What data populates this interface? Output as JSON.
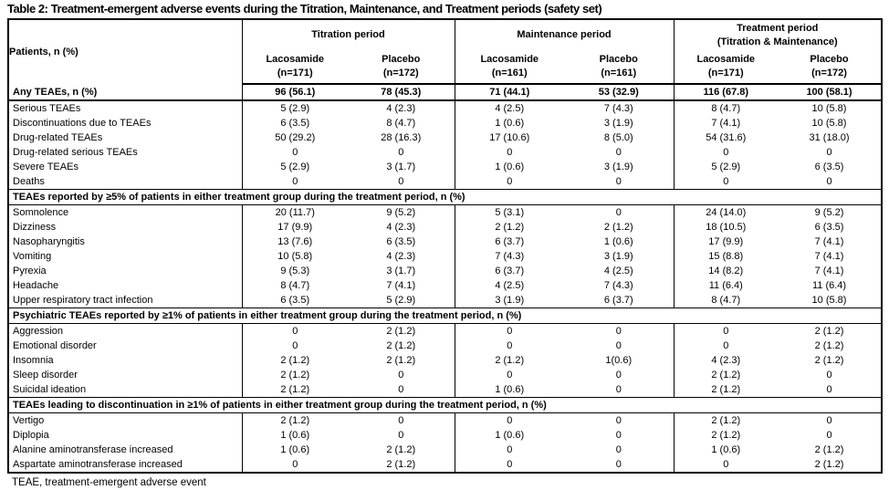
{
  "title": "Table 2: Treatment-emergent adverse events during the Titration, Maintenance, and Treatment periods (safety set)",
  "footnote": "TEAE, treatment-emergent adverse event",
  "colors": {
    "text": "#000000",
    "background": "#ffffff",
    "border": "#000000"
  },
  "table": {
    "corner_header": "Patients, n (%)",
    "period_groups": [
      {
        "label": "Titration period",
        "sublabel": "",
        "arms": [
          {
            "name": "Lacosamide",
            "n": "(n=171)"
          },
          {
            "name": "Placebo",
            "n": "(n=172)"
          }
        ]
      },
      {
        "label": "Maintenance period",
        "sublabel": "",
        "arms": [
          {
            "name": "Lacosamide",
            "n": "(n=161)"
          },
          {
            "name": "Placebo",
            "n": "(n=161)"
          }
        ]
      },
      {
        "label": "Treatment period",
        "sublabel": "(Titration & Maintenance)",
        "arms": [
          {
            "name": "Lacosamide",
            "n": "(n=171)"
          },
          {
            "name": "Placebo",
            "n": "(n=172)"
          }
        ]
      }
    ],
    "sections": [
      {
        "header": "",
        "rows": [
          {
            "label": "Any TEAEs, n (%)",
            "bold": true,
            "values": [
              "96 (56.1)",
              "78 (45.3)",
              "71 (44.1)",
              "53 (32.9)",
              "116 (67.8)",
              "100 (58.1)"
            ]
          },
          {
            "label": "Serious TEAEs",
            "bold": false,
            "values": [
              "5 (2.9)",
              "4 (2.3)",
              "4 (2.5)",
              "7 (4.3)",
              "8 (4.7)",
              "10 (5.8)"
            ]
          },
          {
            "label": "Discontinuations due to TEAEs",
            "bold": false,
            "values": [
              "6 (3.5)",
              "8 (4.7)",
              "1 (0.6)",
              "3 (1.9)",
              "7 (4.1)",
              "10 (5.8)"
            ]
          },
          {
            "label": "Drug-related TEAEs",
            "bold": false,
            "values": [
              "50 (29.2)",
              "28 (16.3)",
              "17 (10.6)",
              "8 (5.0)",
              "54 (31.6)",
              "31 (18.0)"
            ]
          },
          {
            "label": "Drug-related serious TEAEs",
            "bold": false,
            "values": [
              "0",
              "0",
              "0",
              "0",
              "0",
              "0"
            ]
          },
          {
            "label": "Severe TEAEs",
            "bold": false,
            "values": [
              "5 (2.9)",
              "3 (1.7)",
              "1 (0.6)",
              "3 (1.9)",
              "5 (2.9)",
              "6 (3.5)"
            ]
          },
          {
            "label": "Deaths",
            "bold": false,
            "values": [
              "0",
              "0",
              "0",
              "0",
              "0",
              "0"
            ]
          }
        ]
      },
      {
        "header": "TEAEs reported by ≥5% of patients in either treatment group during the treatment period, n (%)",
        "rows": [
          {
            "label": "Somnolence",
            "bold": false,
            "values": [
              "20 (11.7)",
              "9 (5.2)",
              "5 (3.1)",
              "0",
              "24 (14.0)",
              "9 (5.2)"
            ]
          },
          {
            "label": "Dizziness",
            "bold": false,
            "values": [
              "17 (9.9)",
              "4 (2.3)",
              "2 (1.2)",
              "2 (1.2)",
              "18 (10.5)",
              "6 (3.5)"
            ]
          },
          {
            "label": "Nasopharyngitis",
            "bold": false,
            "values": [
              "13 (7.6)",
              "6 (3.5)",
              "6 (3.7)",
              "1 (0.6)",
              "17 (9.9)",
              "7 (4.1)"
            ]
          },
          {
            "label": "Vomiting",
            "bold": false,
            "values": [
              "10 (5.8)",
              "4 (2.3)",
              "7 (4.3)",
              "3 (1.9)",
              "15 (8.8)",
              "7 (4.1)"
            ]
          },
          {
            "label": "Pyrexia",
            "bold": false,
            "values": [
              "9 (5.3)",
              "3 (1.7)",
              "6 (3.7)",
              "4 (2.5)",
              "14 (8.2)",
              "7 (4.1)"
            ]
          },
          {
            "label": "Headache",
            "bold": false,
            "values": [
              "8 (4.7)",
              "7 (4.1)",
              "4 (2.5)",
              "7 (4.3)",
              "11 (6.4)",
              "11 (6.4)"
            ]
          },
          {
            "label": "Upper respiratory tract infection",
            "bold": false,
            "values": [
              "6 (3.5)",
              "5 (2.9)",
              "3 (1.9)",
              "6 (3.7)",
              "8 (4.7)",
              "10 (5.8)"
            ]
          }
        ]
      },
      {
        "header": "Psychiatric TEAEs reported by ≥1% of patients in either treatment group during the treatment period, n (%)",
        "rows": [
          {
            "label": "Aggression",
            "bold": false,
            "values": [
              "0",
              "2 (1.2)",
              "0",
              "0",
              "0",
              "2 (1.2)"
            ]
          },
          {
            "label": "Emotional disorder",
            "bold": false,
            "values": [
              "0",
              "2 (1.2)",
              "0",
              "0",
              "0",
              "2 (1.2)"
            ]
          },
          {
            "label": "Insomnia",
            "bold": false,
            "values": [
              "2 (1.2)",
              "2 (1.2)",
              "2 (1.2)",
              "1(0.6)",
              "4 (2.3)",
              "2 (1.2)"
            ]
          },
          {
            "label": "Sleep disorder",
            "bold": false,
            "values": [
              "2 (1.2)",
              "0",
              "0",
              "0",
              "2 (1.2)",
              "0"
            ]
          },
          {
            "label": "Suicidal ideation",
            "bold": false,
            "values": [
              "2 (1.2)",
              "0",
              "1 (0.6)",
              "0",
              "2 (1.2)",
              "0"
            ]
          }
        ]
      },
      {
        "header": "TEAEs leading to discontinuation in ≥1% of patients in either treatment group during the treatment period, n (%)",
        "rows": [
          {
            "label": "Vertigo",
            "bold": false,
            "values": [
              "2 (1.2)",
              "0",
              "0",
              "0",
              "2 (1.2)",
              "0"
            ]
          },
          {
            "label": "Diplopia",
            "bold": false,
            "values": [
              "1 (0.6)",
              "0",
              "1 (0.6)",
              "0",
              "2 (1.2)",
              "0"
            ]
          },
          {
            "label": "Alanine aminotransferase increased",
            "bold": false,
            "values": [
              "1 (0.6)",
              "2 (1.2)",
              "0",
              "0",
              "1 (0.6)",
              "2 (1.2)"
            ]
          },
          {
            "label": "Aspartate aminotransferase increased",
            "bold": false,
            "values": [
              "0",
              "2 (1.2)",
              "0",
              "0",
              "0",
              "2 (1.2)"
            ]
          }
        ]
      }
    ]
  }
}
